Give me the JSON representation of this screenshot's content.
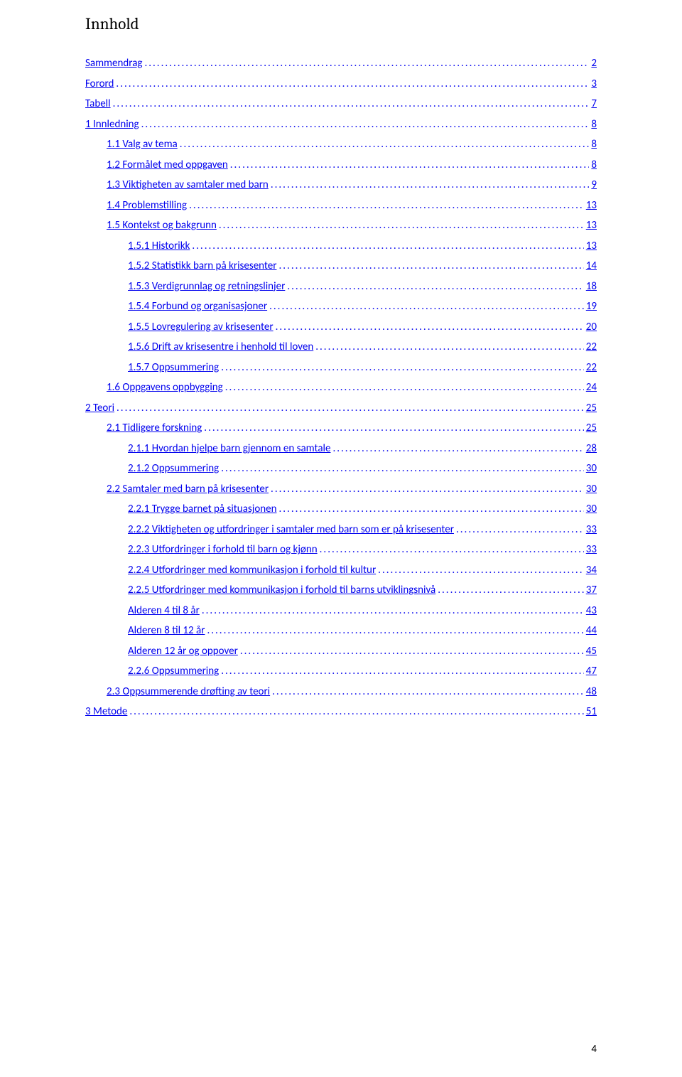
{
  "title": "Innhold",
  "pageNumber": "4",
  "colors": {
    "background": "#ffffff",
    "text": "#000000",
    "link": "#0000ee"
  },
  "typography": {
    "title_font": "Cambria",
    "title_fontsize_pt": 17,
    "title_weight": 400,
    "entry_font": "Calibri",
    "entry_fontsize_pt": 11.5
  },
  "leader_char": ".",
  "toc": [
    {
      "label": "Sammendrag",
      "page": "2",
      "indent": 0
    },
    {
      "label": "Forord",
      "page": "3",
      "indent": 0
    },
    {
      "label": "Tabell",
      "page": "7",
      "indent": 0
    },
    {
      "label": "1 Innledning",
      "page": "8",
      "indent": 0
    },
    {
      "label": "1.1 Valg av tema",
      "page": "8",
      "indent": 1
    },
    {
      "label": "1.2 Formålet med oppgaven",
      "page": "8",
      "indent": 1
    },
    {
      "label": "1.3 Viktigheten av samtaler med barn",
      "page": "9",
      "indent": 1
    },
    {
      "label": "1.4 Problemstilling",
      "page": "13",
      "indent": 1
    },
    {
      "label": "1.5 Kontekst og bakgrunn",
      "page": "13",
      "indent": 1
    },
    {
      "label": "1.5.1 Historikk",
      "page": "13",
      "indent": 2
    },
    {
      "label": "1.5.2 Statistikk barn på krisesenter",
      "page": "14",
      "indent": 2
    },
    {
      "label": "1.5.3 Verdigrunnlag og retningslinjer",
      "page": "18",
      "indent": 2
    },
    {
      "label": "1.5.4 Forbund og organisasjoner",
      "page": "19",
      "indent": 2
    },
    {
      "label": "1.5.5 Lovregulering av krisesenter",
      "page": "20",
      "indent": 2
    },
    {
      "label": "1.5.6 Drift av krisesentre i henhold til loven",
      "page": "22",
      "indent": 2
    },
    {
      "label": "1.5.7 Oppsummering",
      "page": "22",
      "indent": 2
    },
    {
      "label": "1.6 Oppgavens oppbygging",
      "page": "24",
      "indent": 1
    },
    {
      "label": "2 Teori",
      "page": "25",
      "indent": 0
    },
    {
      "label": "2.1 Tidligere forskning",
      "page": "25",
      "indent": 1
    },
    {
      "label": "2.1.1 Hvordan hjelpe barn gjennom en samtale",
      "page": "28",
      "indent": 2
    },
    {
      "label": "2.1.2 Oppsummering",
      "page": "30",
      "indent": 2
    },
    {
      "label": "2.2 Samtaler med barn på krisesenter",
      "page": "30",
      "indent": 1
    },
    {
      "label": "2.2.1 Trygge barnet på situasjonen",
      "page": "30",
      "indent": 2
    },
    {
      "label": "2.2.2 Viktigheten og utfordringer i samtaler med barn som er på krisesenter",
      "page": "33",
      "indent": 2
    },
    {
      "label": "2.2.3 Utfordringer i forhold til barn og kjønn",
      "page": "33",
      "indent": 2
    },
    {
      "label": "2.2.4 Utfordringer med kommunikasjon i forhold til kultur",
      "page": "34",
      "indent": 2
    },
    {
      "label": "2.2.5 Utfordringer med kommunikasjon i forhold til barns utviklingsnivå",
      "page": "37",
      "indent": 2
    },
    {
      "label": "Alderen 4 til 8 år",
      "page": "43",
      "indent": 2
    },
    {
      "label": "Alderen 8 til 12 år",
      "page": "44",
      "indent": 2
    },
    {
      "label": "Alderen 12 år og oppover",
      "page": "45",
      "indent": 2
    },
    {
      "label": "2.2.6 Oppsummering",
      "page": "47",
      "indent": 2
    },
    {
      "label": "2.3 Oppsummerende drøfting av teori",
      "page": "48",
      "indent": 1
    },
    {
      "label": "3 Metode",
      "page": "51",
      "indent": 0
    }
  ]
}
